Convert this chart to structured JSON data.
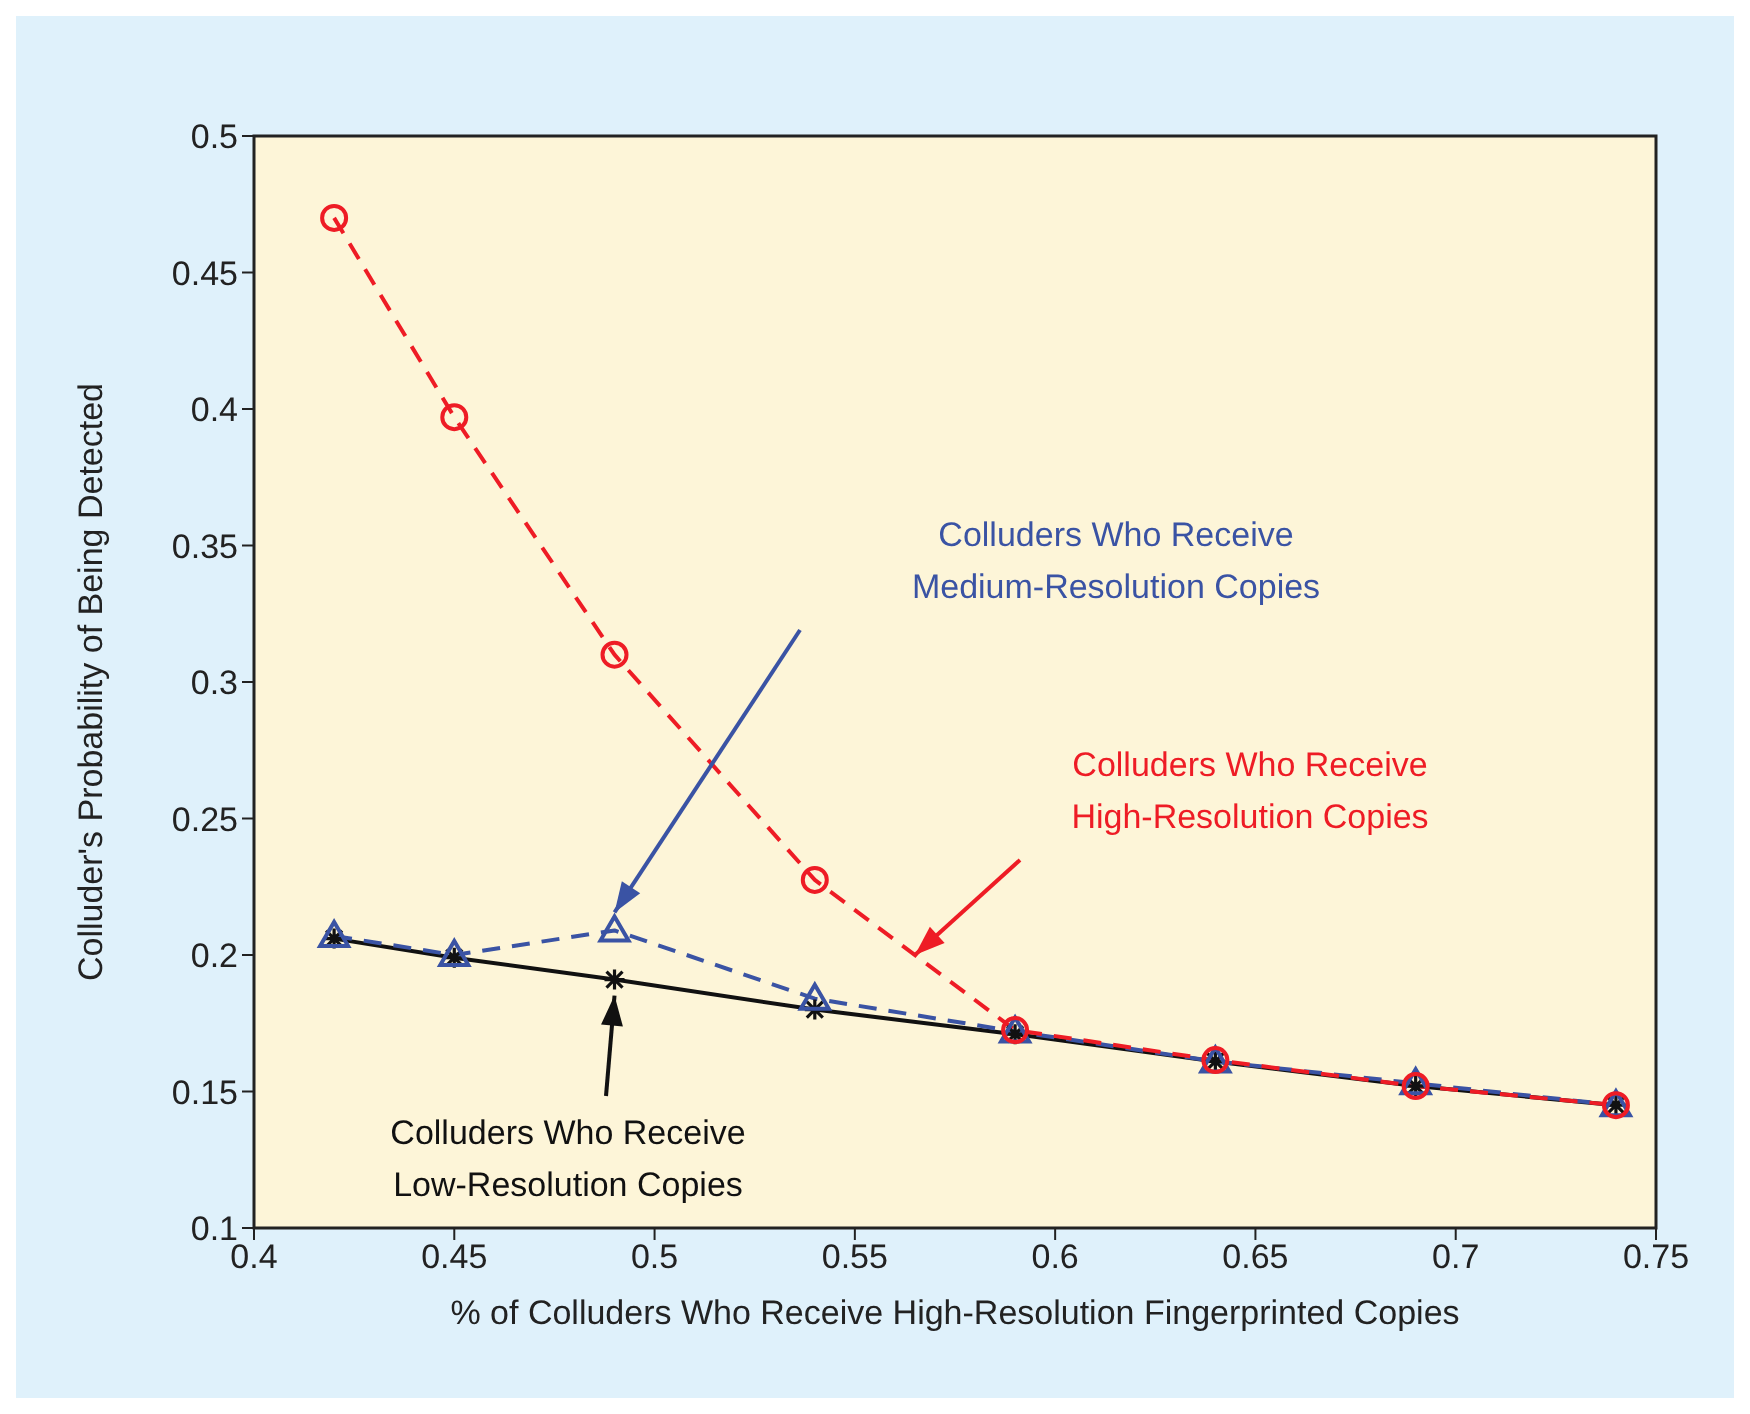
{
  "chart_data": {
    "type": "line",
    "xlabel": "% of Colluders Who Receive High-Resolution Fingerprinted Copies",
    "ylabel": "Colluder's Probability of Being Detected",
    "x": [
      0.42,
      0.45,
      0.49,
      0.54,
      0.59,
      0.64,
      0.69,
      0.74
    ],
    "series": [
      {
        "name": "Colluders Who Receive High-Resolution Copies",
        "color": "#ee1c25",
        "marker": "circle",
        "line_style": "dashed",
        "values": [
          0.47,
          0.397,
          0.31,
          0.2275,
          0.1725,
          0.1615,
          0.152,
          0.145
        ]
      },
      {
        "name": "Colluders Who Receive Medium-Resolution Copies",
        "color": "#3a53a4",
        "marker": "triangle",
        "line_style": "dashed",
        "values": [
          0.207,
          0.2,
          0.209,
          0.184,
          0.172,
          0.161,
          0.153,
          0.145
        ]
      },
      {
        "name": "Colluders Who Receive Low-Resolution Copies",
        "color": "#111111",
        "marker": "cross",
        "line_style": "solid",
        "values": [
          0.206,
          0.199,
          0.191,
          0.18,
          0.171,
          0.161,
          0.152,
          0.145
        ]
      }
    ],
    "xlim": [
      0.4,
      0.75
    ],
    "xticks": [
      0.4,
      0.45,
      0.5,
      0.55,
      0.6,
      0.65,
      0.7,
      0.75
    ],
    "ylim": [
      0.1,
      0.5
    ],
    "yticks": [
      0.1,
      0.15,
      0.2,
      0.25,
      0.3,
      0.35,
      0.4,
      0.45,
      0.5
    ]
  }
}
